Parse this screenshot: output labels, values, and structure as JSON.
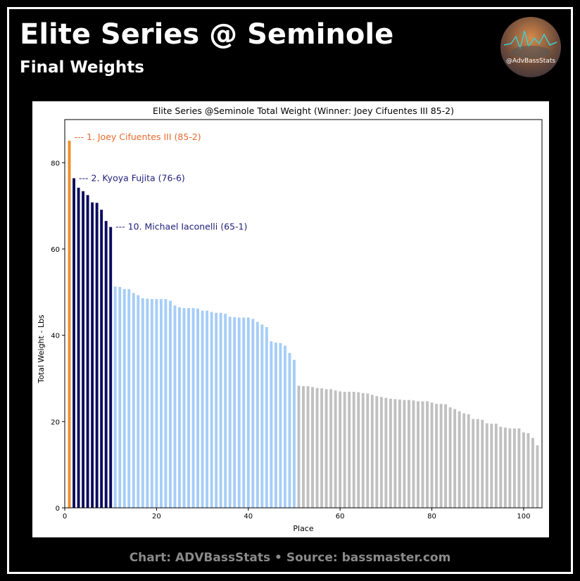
{
  "header": {
    "title": "Elite Series @ Seminole",
    "subtitle": "Final Weights",
    "logo_text": "@AdvBassStats"
  },
  "footer": "Chart: ADVBassStats  •  Source: bassmaster.com",
  "colors": {
    "winner": "#f28e2b",
    "top10": "#0b0b5e",
    "top50": "#a6cdf7",
    "rest": "#c0c0c0",
    "annot_winner": "#e8692d",
    "annot_top": "#1f1f7a"
  },
  "chart_data": {
    "type": "bar",
    "title": "Elite Series @Seminole Total Weight (Winner: Joey Cifuentes III 85-2)",
    "xlabel": "Place",
    "ylabel": "Total Weight - Lbs",
    "xlim": [
      0,
      104
    ],
    "ylim": [
      0,
      90
    ],
    "xticks": [
      0,
      20,
      40,
      60,
      80,
      100
    ],
    "yticks": [
      0,
      20,
      40,
      60,
      80
    ],
    "annotations": [
      {
        "place": 1,
        "text": "--- 1. Joey Cifuentes III (85-2)",
        "group": "winner"
      },
      {
        "place": 2,
        "text": "--- 2. Kyoya Fujita (76-6)",
        "group": "top"
      },
      {
        "place": 10,
        "text": "--- 10. Michael Iaconelli (65-1)",
        "group": "top"
      }
    ],
    "values": [
      85.1,
      76.4,
      74.2,
      73.4,
      72.5,
      70.8,
      70.7,
      69.1,
      66.5,
      65.1,
      51.3,
      51.2,
      50.7,
      50.7,
      49.8,
      49.3,
      48.6,
      48.5,
      48.4,
      48.4,
      48.4,
      48.4,
      48.0,
      46.9,
      46.5,
      46.3,
      46.3,
      46.3,
      46.2,
      45.7,
      45.7,
      45.4,
      45.2,
      45.2,
      45.0,
      44.3,
      44.2,
      44.1,
      44.1,
      44.1,
      43.8,
      43.1,
      42.5,
      41.9,
      38.6,
      38.3,
      38.2,
      37.6,
      35.9,
      34.3,
      28.3,
      28.2,
      28.2,
      28.0,
      27.8,
      27.7,
      27.5,
      27.5,
      27.2,
      27.0,
      26.9,
      26.9,
      26.9,
      26.8,
      26.6,
      26.5,
      26.2,
      25.9,
      25.7,
      25.5,
      25.3,
      25.2,
      25.1,
      25.0,
      25.0,
      24.9,
      24.7,
      24.7,
      24.7,
      24.4,
      24.1,
      24.1,
      24.0,
      23.3,
      22.9,
      22.4,
      21.9,
      21.7,
      20.6,
      20.6,
      20.4,
      19.6,
      19.5,
      19.5,
      18.8,
      18.6,
      18.4,
      18.4,
      18.4,
      17.5,
      17.3,
      16.2,
      14.5
    ]
  }
}
